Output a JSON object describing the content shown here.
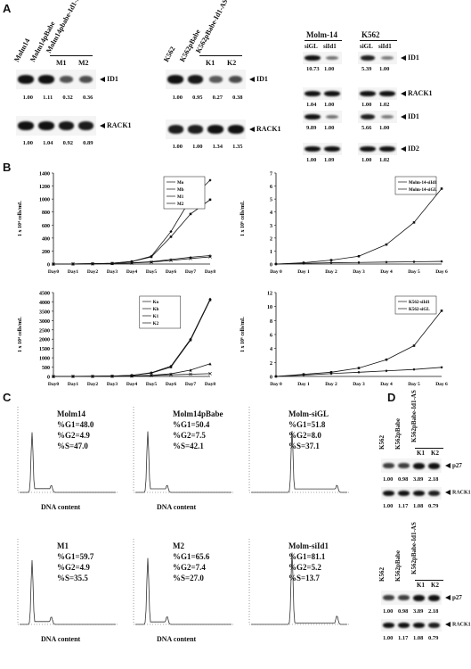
{
  "panels": {
    "a": "A",
    "b": "B",
    "c": "C",
    "d": "D"
  },
  "a1": {
    "lanes": [
      "Molm14",
      "Molm14pBabe",
      "Molm14pbabe-Id1-AS"
    ],
    "sub_lanes": [
      "M1",
      "M2"
    ],
    "marker_top": "ID1",
    "values_top": [
      "1.00",
      "1.11",
      "0.32",
      "0.36"
    ],
    "marker_bottom": "RACK1",
    "values_bottom": [
      "1.00",
      "1.04",
      "0.92",
      "0.89"
    ],
    "intensity_top": [
      1.0,
      1.0,
      0.55,
      0.58
    ],
    "intensity_bottom": [
      1.0,
      1.0,
      0.95,
      0.93
    ]
  },
  "a2": {
    "lanes": [
      "K562",
      "K562pBabe",
      "K562pBabe-Id1-AS"
    ],
    "sub_lanes": [
      "K1",
      "K2"
    ],
    "marker_top": "ID1",
    "values_top": [
      "1.00",
      "0.95",
      "0.27",
      "0.38"
    ],
    "marker_bottom": "RACK1",
    "values_bottom": [
      "1.00",
      "1.00",
      "1.34",
      "1.35"
    ],
    "intensity_top": [
      1.0,
      0.95,
      0.5,
      0.6
    ],
    "intensity_bottom": [
      0.9,
      0.9,
      1.0,
      1.0
    ]
  },
  "a3": {
    "groups": [
      "Molm-14",
      "K562"
    ],
    "lanes": [
      "siGL",
      "siId1",
      "siGL",
      "siId1"
    ],
    "blots": [
      {
        "marker": "ID1",
        "values": [
          "10.73",
          "1.00",
          "5.39",
          "1.00"
        ],
        "intensity": [
          1.0,
          0.35,
          0.9,
          0.3
        ]
      },
      {
        "marker": "RACK1",
        "values": [
          "1.04",
          "1.00",
          "1.00",
          "1.02"
        ],
        "intensity": [
          1.0,
          1.0,
          1.0,
          1.0
        ]
      },
      {
        "marker": "ID1",
        "values": [
          "9.89",
          "1.00",
          "5.66",
          "1.00"
        ],
        "intensity": [
          1.0,
          0.35,
          0.9,
          0.3
        ]
      },
      {
        "marker": "ID2",
        "values": [
          "1.00",
          "1.09",
          "1.00",
          "1.02"
        ],
        "intensity": [
          1.0,
          1.0,
          1.0,
          1.0
        ]
      }
    ]
  },
  "chart_data": [
    {
      "type": "line",
      "ylabel": "1 x 10⁴ cells/mL",
      "categories": [
        "Day0",
        "Day1",
        "Day2",
        "Day3",
        "Day4",
        "Day5",
        "Day6",
        "Day7",
        "Day8"
      ],
      "ylim": [
        0,
        1400
      ],
      "yticks": [
        0,
        200,
        400,
        600,
        800,
        1000,
        1200,
        1400
      ],
      "legend": "top-right",
      "series": [
        {
          "name": "Mo",
          "values": [
            0,
            2,
            5,
            12,
            40,
            120,
            500,
            1000,
            1290
          ]
        },
        {
          "name": "Mb",
          "values": [
            0,
            2,
            5,
            12,
            38,
            110,
            420,
            770,
            990
          ]
        },
        {
          "name": "M1",
          "values": [
            0,
            2,
            4,
            8,
            18,
            35,
            70,
            105,
            130
          ]
        },
        {
          "name": "M2",
          "values": [
            0,
            2,
            4,
            7,
            15,
            30,
            55,
            85,
            110
          ]
        }
      ]
    },
    {
      "type": "line",
      "ylabel": "1 x 10⁶ cells/mL",
      "categories": [
        "Day 0",
        "Day 1",
        "Day 2",
        "Day 3",
        "Day 4",
        "Day 5",
        "Day 6"
      ],
      "ylim": [
        0,
        7
      ],
      "yticks": [
        0,
        1,
        2,
        3,
        4,
        5,
        6,
        7
      ],
      "legend": "top-right",
      "series": [
        {
          "name": "Molm-14-siId1",
          "values": [
            0,
            0.05,
            0.1,
            0.12,
            0.15,
            0.17,
            0.2
          ]
        },
        {
          "name": "Molm-14-siGL",
          "values": [
            0,
            0.1,
            0.3,
            0.6,
            1.5,
            3.2,
            5.8
          ]
        }
      ]
    },
    {
      "type": "line",
      "ylabel": "1 x 10⁴ cells/mL",
      "categories": [
        "Day0",
        "Day1",
        "Day2",
        "Day3",
        "Day4",
        "Day5",
        "Day6",
        "Day7",
        "Day8"
      ],
      "ylim": [
        0,
        4500
      ],
      "yticks": [
        0,
        500,
        1000,
        1500,
        2000,
        2500,
        3000,
        3500,
        4000,
        4500
      ],
      "legend": "top-left",
      "series": [
        {
          "name": "Ko",
          "values": [
            0,
            3,
            8,
            20,
            60,
            200,
            550,
            2000,
            4150
          ]
        },
        {
          "name": "Kb",
          "values": [
            0,
            3,
            8,
            20,
            55,
            180,
            500,
            1950,
            4100
          ]
        },
        {
          "name": "K1",
          "values": [
            0,
            2,
            5,
            10,
            25,
            60,
            140,
            340,
            680
          ]
        },
        {
          "name": "K2",
          "values": [
            0,
            2,
            5,
            9,
            20,
            45,
            90,
            120,
            150
          ]
        }
      ]
    },
    {
      "type": "line",
      "ylabel": "1 x 10⁶ cells/mL",
      "categories": [
        "Day 0",
        "Day 1",
        "Day 2",
        "Day 3",
        "Day 4",
        "Day 5",
        "Day 6"
      ],
      "ylim": [
        0,
        12
      ],
      "yticks": [
        0,
        2,
        4,
        6,
        8,
        10,
        12
      ],
      "legend": "top-right",
      "series": [
        {
          "name": "K562-siId1",
          "values": [
            0,
            0.2,
            0.4,
            0.6,
            0.8,
            1.0,
            1.3
          ]
        },
        {
          "name": "K562-siGL",
          "values": [
            0,
            0.3,
            0.6,
            1.2,
            2.4,
            4.4,
            9.4
          ]
        }
      ]
    }
  ],
  "c": {
    "xlabel": "DNA content",
    "plots": [
      {
        "name": "Molm14",
        "g1": "%G1=48.0",
        "g2": "%G2=4.9",
        "s": "%S=47.0",
        "xlabel_shown": true
      },
      {
        "name": "Molm14pBabe",
        "g1": "%G1=50.4",
        "g2": "%G2=7.5",
        "s": "%S=42.1",
        "xlabel_shown": true
      },
      {
        "name": "Molm-siGL",
        "g1": "%G1=51.8",
        "g2": "%G2=8.0",
        "s": "%S=37.1",
        "xlabel_shown": false
      },
      {
        "name": "M1",
        "g1": "%G1=59.7",
        "g2": "%G2=4.9",
        "s": "%S=35.5",
        "xlabel_shown": true
      },
      {
        "name": "M2",
        "g1": "%G1=65.6",
        "g2": "%G2=7.4",
        "s": "%S=27.0",
        "xlabel_shown": true
      },
      {
        "name": "Molm-siId1",
        "g1": "%G1=81.1",
        "g2": "%G2=5.2",
        "s": "%S=13.7",
        "xlabel_shown": false
      }
    ]
  },
  "d": {
    "lanes": [
      "K562",
      "K562pBabe",
      "K562pBabe-Id1-AS"
    ],
    "sub_lanes": [
      "K1",
      "K2"
    ],
    "blocks": [
      {
        "marker_top": "p27",
        "values_top": [
          "1.00",
          "0.98",
          "3.89",
          "2.18"
        ],
        "marker_bottom": "RACK1",
        "values_bottom": [
          "1.00",
          "1.17",
          "1.08",
          "0.79"
        ],
        "intensity_top": [
          0.7,
          0.7,
          1.0,
          1.0
        ]
      },
      {
        "marker_top": "p27",
        "values_top": [
          "1.00",
          "0.98",
          "3.89",
          "2.18"
        ],
        "marker_bottom": "RACK1",
        "values_bottom": [
          "1.00",
          "1.17",
          "1.08",
          "0.79"
        ],
        "intensity_top": [
          0.7,
          0.7,
          1.0,
          1.0
        ]
      }
    ]
  }
}
